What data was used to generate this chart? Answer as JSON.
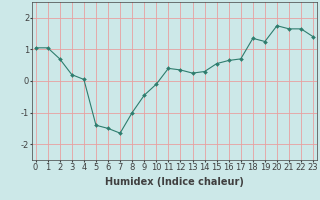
{
  "x": [
    0,
    1,
    2,
    3,
    4,
    5,
    6,
    7,
    8,
    9,
    10,
    11,
    12,
    13,
    14,
    15,
    16,
    17,
    18,
    19,
    20,
    21,
    22,
    23
  ],
  "y": [
    1.05,
    1.05,
    0.7,
    0.2,
    0.05,
    -1.4,
    -1.5,
    -1.65,
    -1.0,
    -0.45,
    -0.1,
    0.4,
    0.35,
    0.25,
    0.3,
    0.55,
    0.65,
    0.7,
    1.35,
    1.25,
    1.75,
    1.65,
    1.65,
    1.4
  ],
  "xlabel": "Humidex (Indice chaleur)",
  "ylim": [
    -2.5,
    2.5
  ],
  "xlim": [
    -0.3,
    23.3
  ],
  "yticks": [
    -2,
    -1,
    0,
    1,
    2
  ],
  "xtick_labels": [
    "0",
    "1",
    "2",
    "3",
    "4",
    "5",
    "6",
    "7",
    "8",
    "9",
    "1011",
    "1213",
    "1415",
    "1617",
    "1819",
    "2021",
    "2223"
  ],
  "line_color": "#2e7d6e",
  "marker_color": "#2e7d6e",
  "bg_color": "#cce8e8",
  "grid_color_major": "#e8a0a0",
  "grid_color_minor": "#d4c8c8",
  "axis_color": "#404040",
  "label_fontsize": 7,
  "tick_fontsize": 6
}
